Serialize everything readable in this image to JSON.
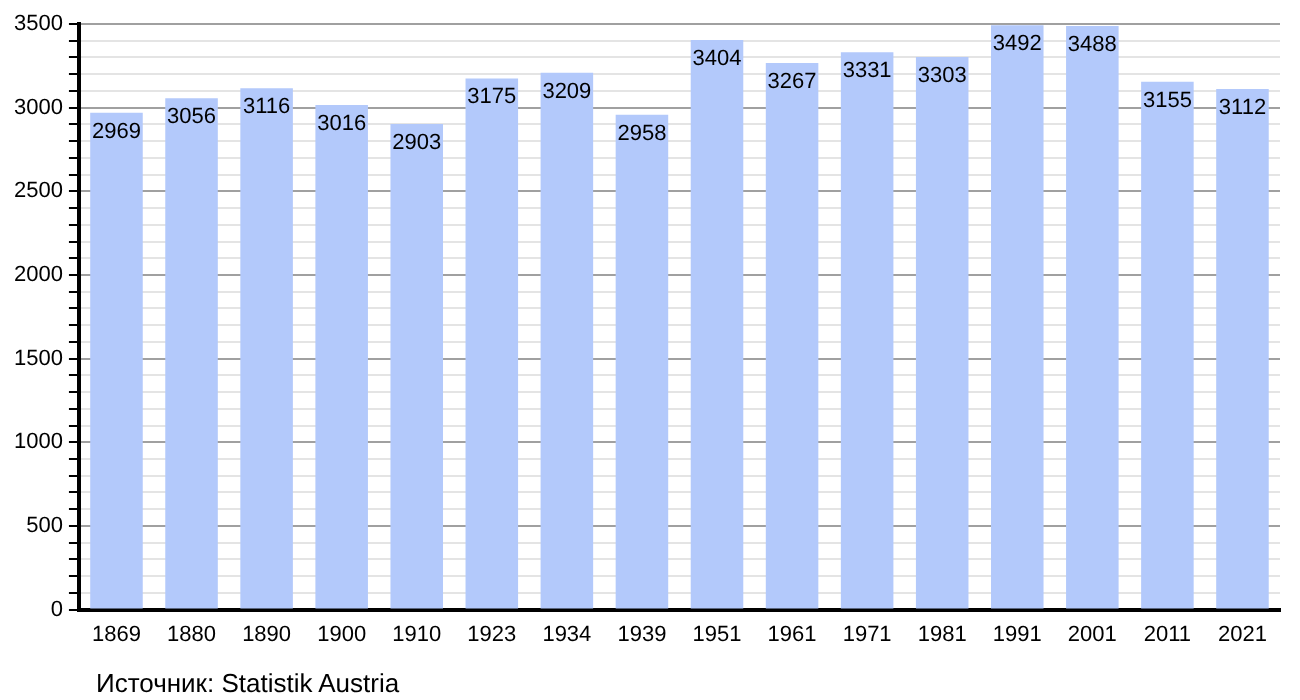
{
  "chart_data": {
    "type": "bar",
    "categories": [
      "1869",
      "1880",
      "1890",
      "1900",
      "1910",
      "1923",
      "1934",
      "1939",
      "1951",
      "1961",
      "1971",
      "1981",
      "1991",
      "2001",
      "2011",
      "2021"
    ],
    "values": [
      2969,
      3056,
      3116,
      3016,
      2903,
      3175,
      3209,
      2958,
      3404,
      3267,
      3331,
      3303,
      3492,
      3488,
      3155,
      3112
    ],
    "color": "#b3c9fb",
    "data_labels": true,
    "grid": "y",
    "ylim": [
      0,
      3500
    ],
    "yticks": [
      0,
      {
        "value": 100,
        "label": null
      },
      {
        "value": 200,
        "label": null
      },
      {
        "value": 300,
        "label": null
      },
      {
        "value": 400,
        "label": null
      },
      500,
      {
        "value": 600,
        "label": null
      },
      {
        "value": 700,
        "label": null
      },
      {
        "value": 800,
        "label": null
      },
      {
        "value": 900,
        "label": null
      },
      1000,
      {
        "value": 1100,
        "label": null
      },
      {
        "value": 1200,
        "label": null
      },
      {
        "value": 1300,
        "label": null
      },
      {
        "value": 1400,
        "label": null
      },
      1500,
      {
        "value": 1600,
        "label": null
      },
      {
        "value": 1700,
        "label": null
      },
      {
        "value": 1800,
        "label": null
      },
      {
        "value": 1900,
        "label": null
      },
      2000,
      {
        "value": 2100,
        "label": null
      },
      {
        "value": 2200,
        "label": null
      },
      {
        "value": 2300,
        "label": null
      },
      {
        "value": 2400,
        "label": null
      },
      2500,
      {
        "value": 2600,
        "label": null
      },
      {
        "value": 2700,
        "label": null
      },
      {
        "value": 2800,
        "label": null
      },
      {
        "value": 2900,
        "label": null
      },
      3000,
      {
        "value": 3100,
        "label": null
      },
      {
        "value": 3200,
        "label": null
      },
      {
        "value": 3300,
        "label": null
      },
      {
        "value": 3400,
        "label": null
      },
      3500
    ],
    "annotations": [
      "Источник: Statistik Austria"
    ]
  }
}
